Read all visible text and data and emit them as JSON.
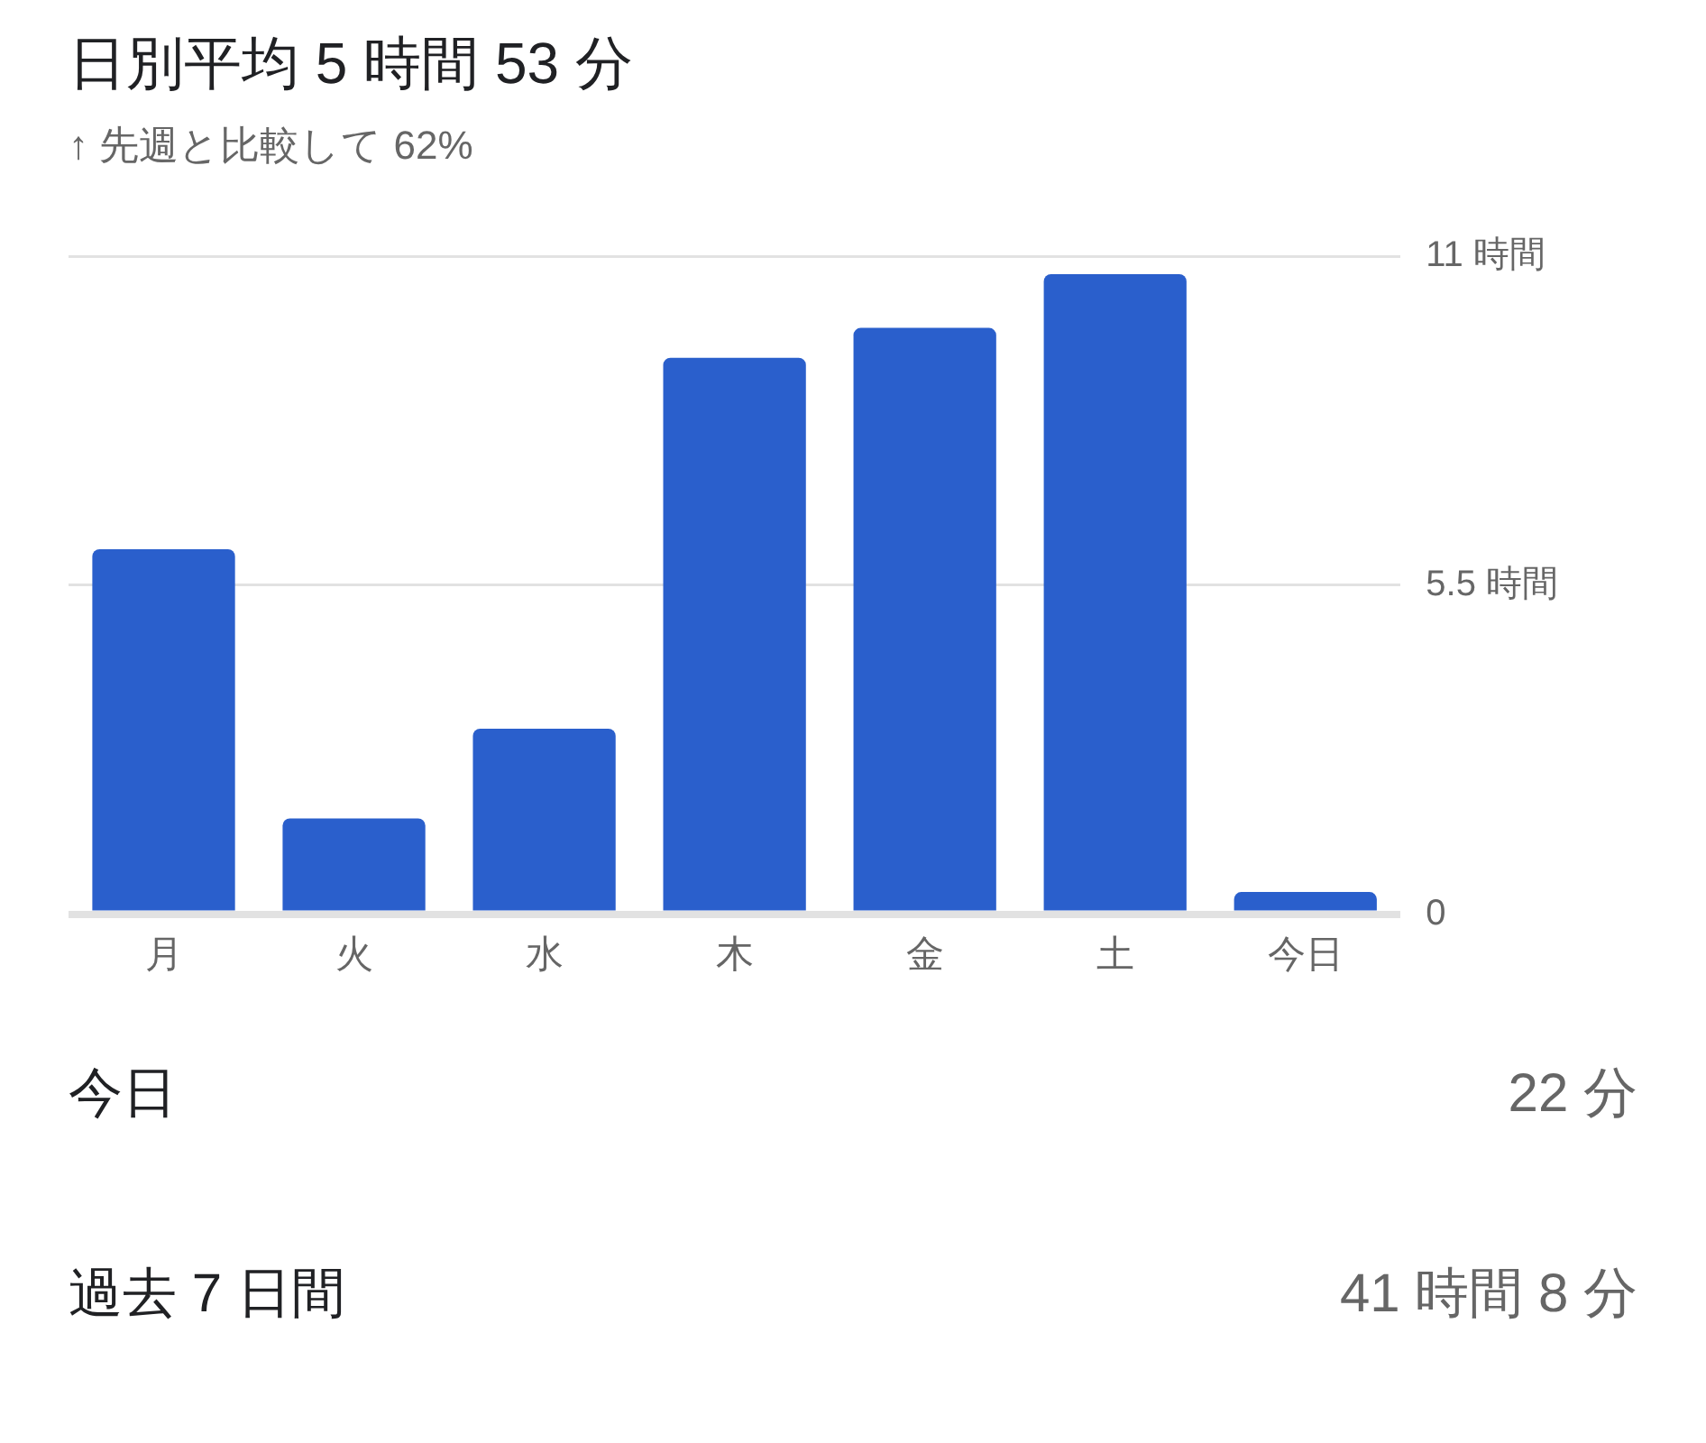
{
  "chart_data": {
    "type": "bar",
    "title": "日別平均 5 時間 53 分",
    "subtitle": "↑ 先週と比較して 62%",
    "categories": [
      "月",
      "火",
      "水",
      "木",
      "金",
      "土",
      "今日"
    ],
    "values": [
      6.1,
      1.6,
      3.1,
      9.3,
      9.8,
      10.7,
      0.37
    ],
    "color": "#2a5fcc",
    "ylim": [
      0,
      11
    ],
    "yticks": [
      0,
      {
        "value": 5.5,
        "label": "5.5 時間"
      },
      {
        "value": 11,
        "label": "11 時間"
      }
    ],
    "grid": "y",
    "legend": false,
    "annotations": [
      "今日",
      "22 分",
      "過去 7 日間",
      "41 時間 8 分"
    ]
  }
}
